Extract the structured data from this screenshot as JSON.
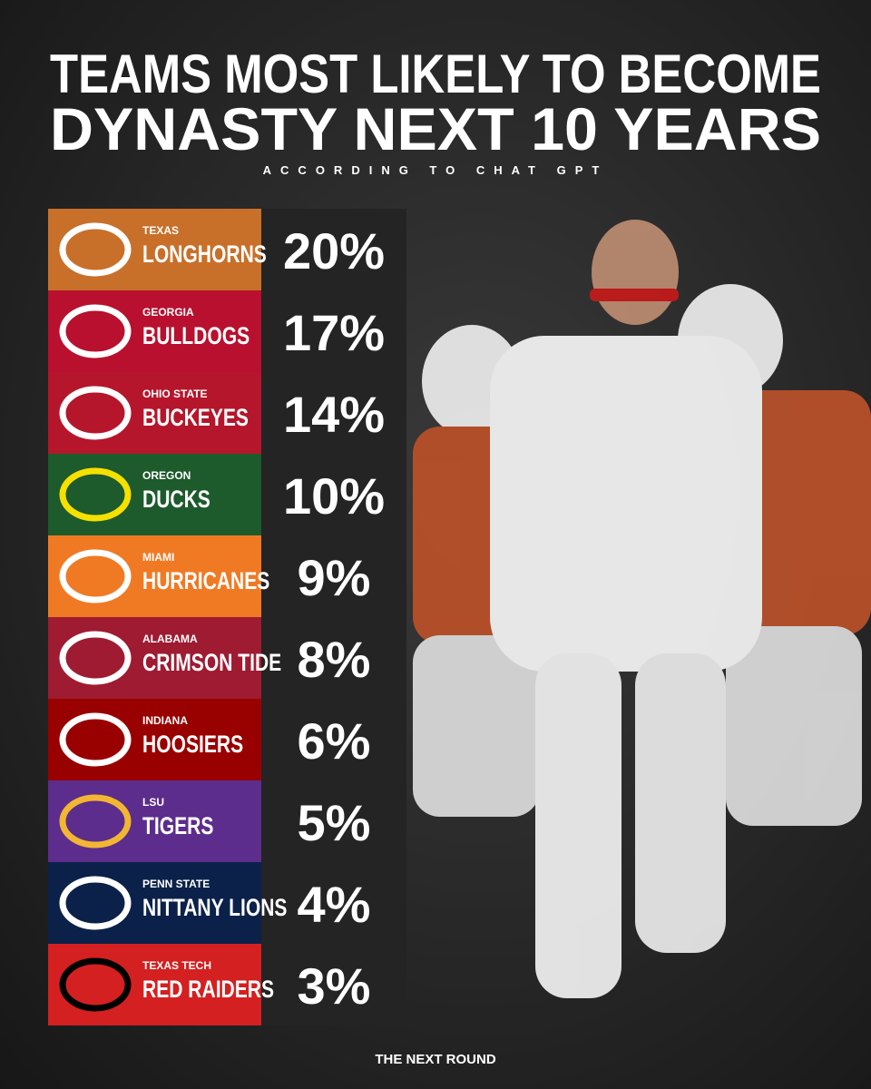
{
  "header": {
    "title_line1": "TEAMS MOST LIKELY TO BECOME",
    "title_line2": "DYNASTY NEXT 10 YEARS",
    "subtitle": "ACCORDING TO CHAT GPT"
  },
  "rows": [
    {
      "school": "TEXAS",
      "team": "LONGHORNS",
      "pct": "20%"
    },
    {
      "school": "GEORGIA",
      "team": "BULLDOGS",
      "pct": "17%"
    },
    {
      "school": "OHIO STATE",
      "team": "BUCKEYES",
      "pct": "14%"
    },
    {
      "school": "OREGON",
      "team": "DUCKS",
      "pct": "10%"
    },
    {
      "school": "MIAMI",
      "team": "HURRICANES",
      "pct": "9%"
    },
    {
      "school": "ALABAMA",
      "team": "CRIMSON TIDE",
      "pct": "8%"
    },
    {
      "school": "INDIANA",
      "team": "HOOSIERS",
      "pct": "6%"
    },
    {
      "school": "LSU",
      "team": "TIGERS",
      "pct": "5%"
    },
    {
      "school": "PENN STATE",
      "team": "NITTANY LIONS",
      "pct": "4%"
    },
    {
      "school": "TEXAS TECH",
      "team": "RED RAIDERS",
      "pct": "3%"
    }
  ],
  "footer": "THE NEXT ROUND"
}
